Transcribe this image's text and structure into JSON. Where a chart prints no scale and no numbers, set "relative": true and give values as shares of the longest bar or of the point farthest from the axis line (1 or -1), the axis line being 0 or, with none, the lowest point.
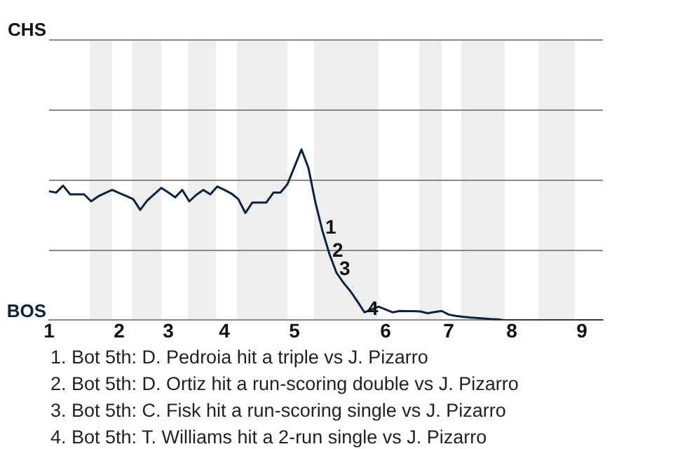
{
  "chart_data": {
    "type": "line",
    "categories": [
      "1",
      null,
      null,
      null,
      null,
      null,
      null,
      null,
      null,
      null,
      "2",
      null,
      null,
      null,
      null,
      null,
      null,
      "3",
      null,
      null,
      null,
      null,
      null,
      null,
      null,
      "4",
      null,
      null,
      null,
      null,
      null,
      null,
      null,
      null,
      null,
      "5",
      null,
      null,
      null,
      null,
      null,
      null,
      null,
      null,
      null,
      null,
      null,
      null,
      "6",
      null,
      null,
      null,
      null,
      null,
      null,
      null,
      null,
      "7",
      null,
      null,
      null,
      null,
      null,
      null,
      null,
      null,
      "8",
      null,
      null,
      null,
      null,
      null,
      null,
      null,
      null,
      null,
      "9",
      null,
      null,
      null
    ],
    "values": [
      0.755,
      0.747,
      0.788,
      0.737,
      0.737,
      0.737,
      0.696,
      0.725,
      0.745,
      0.763,
      0.745,
      0.727,
      0.709,
      0.646,
      0.701,
      0.738,
      0.775,
      0.748,
      0.72,
      0.763,
      0.696,
      0.734,
      0.763,
      0.737,
      0.783,
      0.763,
      0.742,
      0.709,
      0.628,
      0.689,
      0.689,
      0.689,
      0.747,
      0.747,
      0.796,
      0.898,
      1,
      0.891,
      0.688,
      0.523,
      0.387,
      0.278,
      0.219,
      0.169,
      0.109,
      0.046,
      0.063,
      0.079,
      0.063,
      0.046,
      0.054,
      0.053,
      0.053,
      0.051,
      0.041,
      0.048,
      0.054,
      0.033,
      0.025,
      0.02,
      0.016,
      0.013,
      0.01,
      0.007,
      0.005,
      0,
      0,
      0,
      0,
      0,
      0,
      0,
      0,
      0,
      0,
      0,
      0,
      0,
      0,
      0
    ],
    "relative": true,
    "color": "#0c2340",
    "marker": "none",
    "ref_lines": [
      {
        "axis": "y",
        "value": 0.411,
        "color": "#888888"
      },
      {
        "axis": "y",
        "value": 0.822,
        "color": "#888888"
      },
      {
        "axis": "y",
        "value": 1.234,
        "color": "#888888"
      },
      {
        "axis": "y",
        "value": 1.645,
        "color": "#888888"
      }
    ],
    "annotations": [
      "CHS",
      "BOS",
      {
        "text": "1",
        "y": 0.523
      },
      {
        "text": "2",
        "y": 0.387
      },
      {
        "text": "3",
        "y": 0.278
      },
      {
        "text": "4",
        "y": 0.046
      },
      "1. Bot 5th: D. Pedroia hit a triple vs J. Pizarro",
      "2. Bot 5th: D. Ortiz hit a run-scoring double vs J. Pizarro",
      "3. Bot 5th: C. Fisk hit a run-scoring single vs J. Pizarro",
      "4. Bot 5th: T. Williams hit a 2-run single vs J. Pizarro"
    ]
  }
}
